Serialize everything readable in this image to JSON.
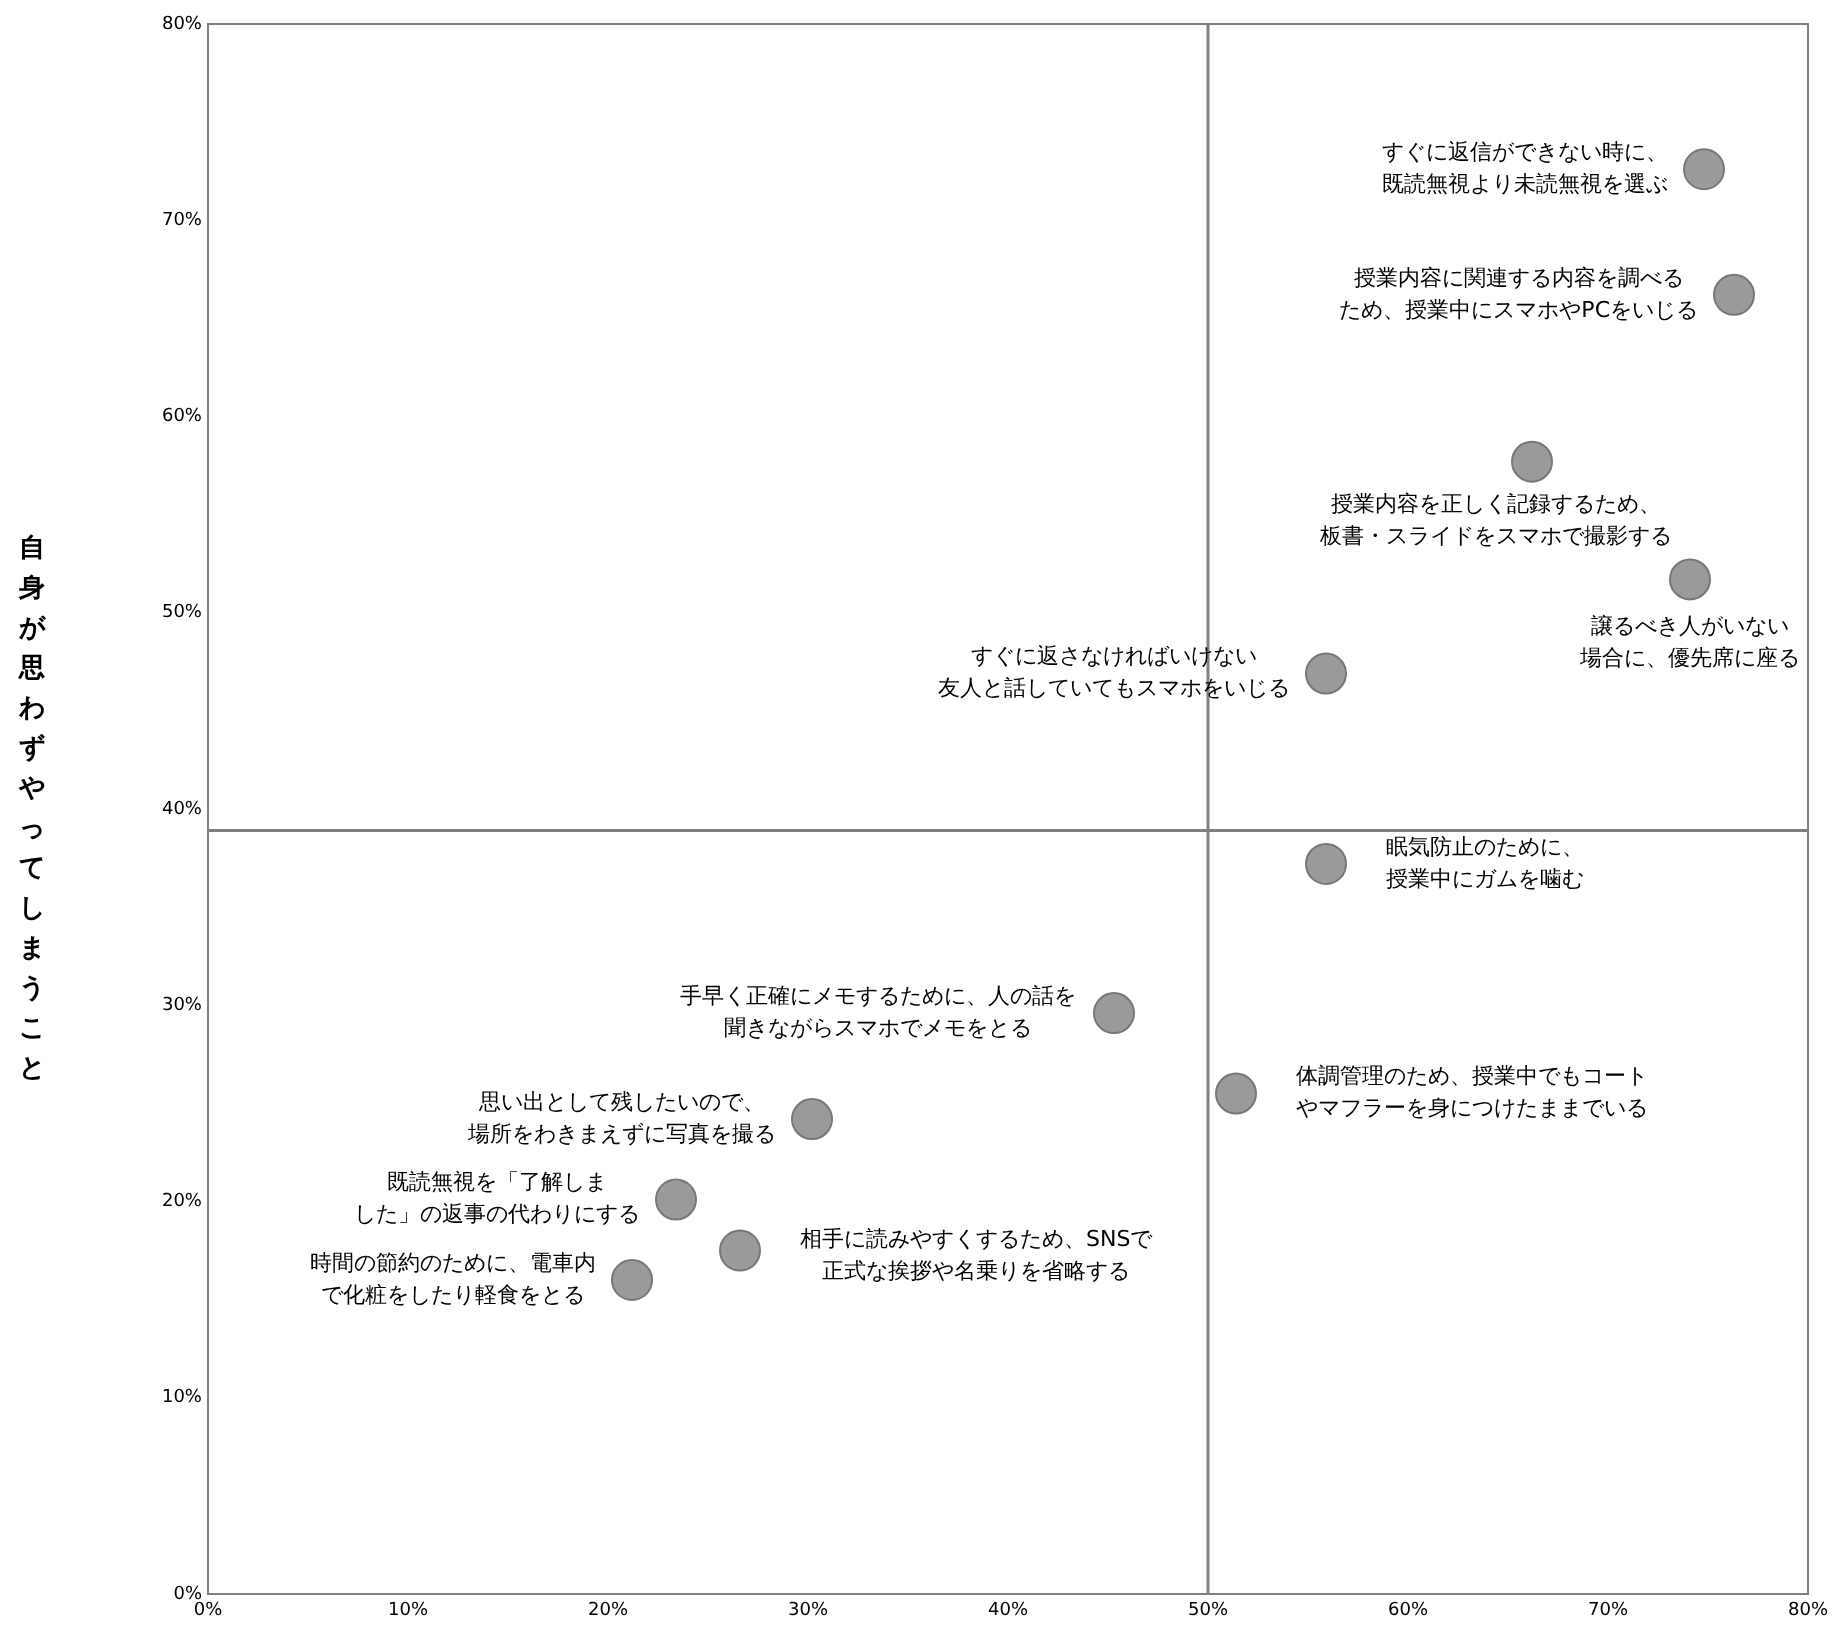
{
  "chart_data": {
    "type": "scatter",
    "ylabel": "自身が思わずやってしまうこと",
    "x": [
      74.8,
      76.3,
      66.2,
      74.1,
      55.9,
      55.9,
      45.3,
      51.4,
      30.2,
      23.4,
      26.6,
      21.2
    ],
    "values": [
      72.6,
      66.2,
      57.7,
      51.7,
      46.9,
      37.2,
      29.6,
      25.5,
      24.2,
      20.1,
      17.5,
      16.0
    ],
    "color": "#9a9a9a",
    "marker": "circle",
    "grid": false,
    "legend": false,
    "xlim": [
      0,
      80
    ],
    "ylim": [
      0,
      80
    ],
    "xticks": [
      {
        "value": 0,
        "label": "0%"
      },
      {
        "value": 10,
        "label": "10%"
      },
      {
        "value": 20,
        "label": "20%"
      },
      {
        "value": 30,
        "label": "30%"
      },
      {
        "value": 40,
        "label": "40%"
      },
      {
        "value": 50,
        "label": "50%"
      },
      {
        "value": 60,
        "label": "60%"
      },
      {
        "value": 70,
        "label": "70%"
      },
      {
        "value": 80,
        "label": "80%"
      }
    ],
    "yticks": [
      {
        "value": 0,
        "label": "0%"
      },
      {
        "value": 10,
        "label": "10%"
      },
      {
        "value": 20,
        "label": "20%"
      },
      {
        "value": 30,
        "label": "30%"
      },
      {
        "value": 40,
        "label": "40%"
      },
      {
        "value": 50,
        "label": "50%"
      },
      {
        "value": 60,
        "label": "60%"
      },
      {
        "value": 70,
        "label": "70%"
      },
      {
        "value": 80,
        "label": "80%"
      }
    ],
    "ref_lines": [
      {
        "axis": "x",
        "value": 50,
        "color": "#808080"
      },
      {
        "axis": "y",
        "value": 38.9,
        "color": "#808080"
      }
    ],
    "annotations": [
      {
        "text": "すぐに返信ができない時に、既読無視より未読無視を選ぶ",
        "x": 74.8,
        "y": 72.6
      },
      {
        "text": "授業内容に関連する内容を調べるため、授業中にスマホやPCをいじる",
        "x": 76.3,
        "y": 66.2
      },
      {
        "text": "授業内容を正しく記録するため、板書・スライドをスマホで撮影する",
        "x": 66.2,
        "y": 57.7
      },
      {
        "text": "譲るべき人がいない場合に、優先席に座る",
        "x": 74.1,
        "y": 51.7
      },
      {
        "text": "すぐに返さなければいけない友人と話していてもスマホをいじる",
        "x": 55.9,
        "y": 46.9
      },
      {
        "text": "眠気防止のために、授業中にガムを噛む",
        "x": 55.9,
        "y": 37.2
      },
      {
        "text": "手早く正確にメモするために、人の話を聞きながらスマホでメモをとる",
        "x": 45.3,
        "y": 29.6
      },
      {
        "text": "体調管理のため、授業中でもコートやマフラーを身につけたままでいる",
        "x": 51.4,
        "y": 25.5
      },
      {
        "text": "思い出として残したいので、場所をわきまえずに写真を撮る",
        "x": 30.2,
        "y": 24.2
      },
      {
        "text": "既読無視を「了解しました」の返事の代わりにする",
        "x": 23.4,
        "y": 20.1
      },
      {
        "text": "相手に読みやすくするため、SNSで正式な挨拶や名乗りを省略する",
        "x": 26.6,
        "y": 17.5
      },
      {
        "text": "時間の節約のために、電車内で化粧をしたり軽食をとる",
        "x": 21.2,
        "y": 16.0
      }
    ]
  }
}
